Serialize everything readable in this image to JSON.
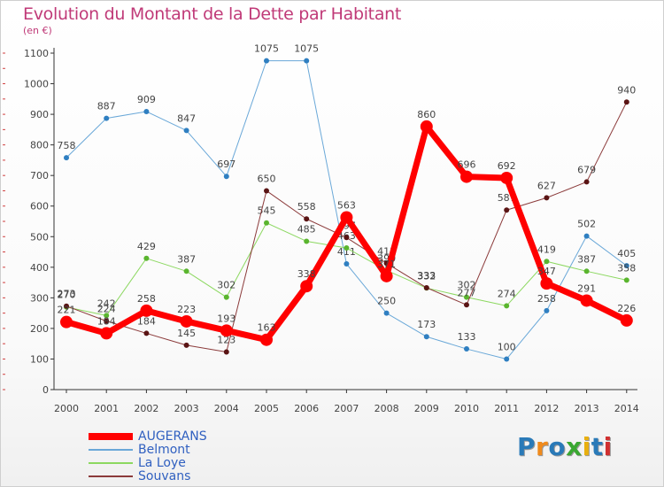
{
  "title": "Evolution du Montant de la Dette par Habitant",
  "subtitle": "(en €)",
  "logo": {
    "text": "Proxiti",
    "letter_colors": [
      "#2a7ab8",
      "#f08a1c",
      "#2a7ab8",
      "#3aa832",
      "#e8b010",
      "#2a7ab8",
      "#d03030"
    ]
  },
  "chart_data": {
    "type": "line",
    "title": "Evolution du Montant de la Dette par Habitant",
    "subtitle": "(en €)",
    "xlabel": "",
    "ylabel": "",
    "ylim": [
      0,
      1100
    ],
    "yticks": [
      0,
      100,
      200,
      300,
      400,
      500,
      600,
      700,
      800,
      900,
      1000,
      1100
    ],
    "grid": false,
    "legend_position": "bottom-left",
    "categories": [
      "2000",
      "2001",
      "2002",
      "2003",
      "2004",
      "2005",
      "2006",
      "2007",
      "2008",
      "2009",
      "2010",
      "2011",
      "2012",
      "2013",
      "2014"
    ],
    "series": [
      {
        "name": "Belmont",
        "color": "#6aa8d8",
        "marker": "#2f7fc1",
        "width": 1,
        "values": [
          758,
          887,
          909,
          847,
          697,
          1075,
          1075,
          411,
          250,
          173,
          133,
          100,
          258,
          502,
          405
        ],
        "labels": [
          "758",
          "887",
          "909",
          "847",
          "697",
          "1075",
          "1075",
          "411",
          "250",
          "173",
          "133",
          "100",
          "258",
          "502",
          "405"
        ]
      },
      {
        "name": "La Loye",
        "color": "#8cd860",
        "marker": "#5ab52e",
        "width": 1,
        "values": [
          270,
          242,
          429,
          387,
          302,
          545,
          485,
          463,
          390,
          332,
          302,
          274,
          419,
          387,
          358
        ],
        "labels": [
          "270",
          "242",
          "429",
          "387",
          "302",
          "545",
          "485",
          "463",
          "390",
          "332",
          "302",
          "274",
          "419",
          "387",
          "358"
        ]
      },
      {
        "name": "Souvans",
        "color": "#8b3a3a",
        "marker": "#5a1414",
        "width": 1,
        "values": [
          273,
          224,
          184,
          145,
          123,
          650,
          558,
          497,
          413,
          333,
          277,
          587,
          627,
          679,
          940
        ],
        "labels": [
          "273",
          "224",
          "184",
          "145",
          "123",
          "650",
          "558",
          "497",
          "413",
          "333",
          "277",
          "587",
          "627",
          "679",
          "940"
        ]
      },
      {
        "name": "AUGERANS",
        "color": "#ff0000",
        "marker": "#ff0000",
        "width": 7,
        "values": [
          221,
          184,
          258,
          223,
          193,
          163,
          338,
          563,
          371,
          860,
          696,
          692,
          347,
          291,
          226
        ],
        "labels": [
          "221",
          "184",
          "258",
          "223",
          "193",
          "163",
          "338",
          "563",
          "371",
          "860",
          "696",
          "692",
          "347",
          "291",
          "226"
        ]
      }
    ]
  },
  "legend": [
    {
      "label": "AUGERANS",
      "color": "#ff0000",
      "thickness": 8
    },
    {
      "label": "Belmont",
      "color": "#6aa8d8",
      "thickness": 2
    },
    {
      "label": "La Loye",
      "color": "#8cd860",
      "thickness": 2
    },
    {
      "label": "Souvans",
      "color": "#8b3a3a",
      "thickness": 2
    }
  ]
}
